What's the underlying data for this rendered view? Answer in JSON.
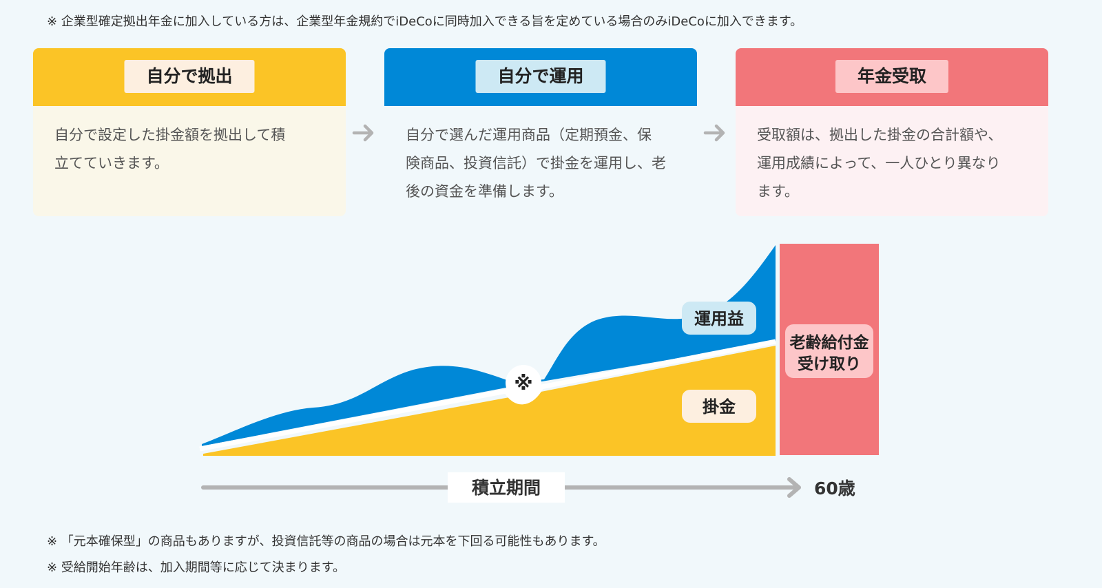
{
  "notes": {
    "top": "※ 企業型確定拠出年金に加入している方は、企業型年金規約でiDeCoに同時加入できる旨を定めている場合のみiDeCoに加入できます。",
    "bottom1": "※ 「元本確保型」の商品もありますが、投資信託等の商品の場合は元本を下回る可能性もあります。",
    "bottom2": "※ 受給開始年齢は、加入期間等に応じて決まります。"
  },
  "steps": [
    {
      "title": "自分で拠出",
      "line1": "自分で設定した掛金額を拠出して積",
      "line2": "立てていきます。",
      "line3": ""
    },
    {
      "title": "自分で運用",
      "line1": "自分で選んだ運用商品（定期預金、保",
      "line2": "険商品、投資信託）で掛金を運用し、老",
      "line3": "後の資金を準備します。"
    },
    {
      "title": "年金受取",
      "line1": "受取額は、拠出した掛金の合計額や、",
      "line2": "運用成績によって、一人ひとり異なり",
      "line3": "ます。"
    }
  ],
  "diagram": {
    "gain_label": "運用益",
    "contribution_label": "掛金",
    "dip_mark": "※",
    "payout_line1": "老齢給付金",
    "payout_line2": "受け取り",
    "axis_label": "積立期間",
    "axis_end": "60歳"
  },
  "colors": {
    "yellow": "#fbc426",
    "blue": "#0088d7",
    "pink": "#f2767a",
    "arrow_gray": "#b3b3b3"
  }
}
